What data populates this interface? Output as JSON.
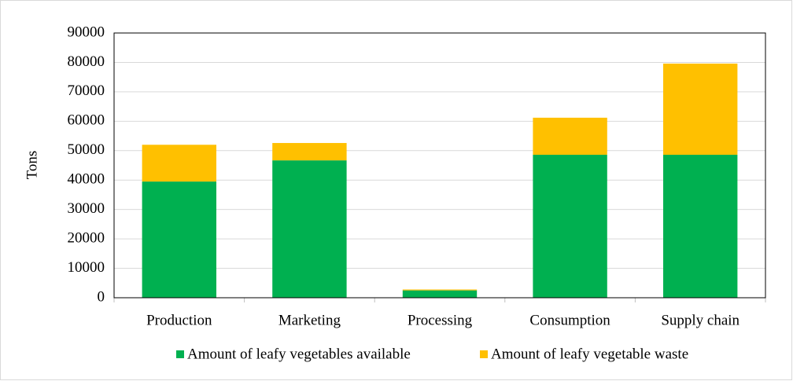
{
  "chart_data": {
    "type": "stacked_bar",
    "y_label": "Tons",
    "categories": [
      "Production",
      "Marketing",
      "Processing",
      "Consumption",
      "Supply chain"
    ],
    "series": [
      {
        "name": "Amount of leafy vegetables available",
        "color": "#00b050",
        "values": [
          39500,
          46700,
          2500,
          48600,
          48600
        ]
      },
      {
        "name": "Amount of leafy vegetable waste",
        "color": "#ffc000",
        "values": [
          12500,
          5900,
          300,
          12600,
          31000
        ]
      }
    ],
    "ylim": [
      0,
      90000
    ],
    "yticks": [
      0,
      10000,
      20000,
      30000,
      40000,
      50000,
      60000,
      70000,
      80000,
      90000
    ],
    "grid": true
  }
}
